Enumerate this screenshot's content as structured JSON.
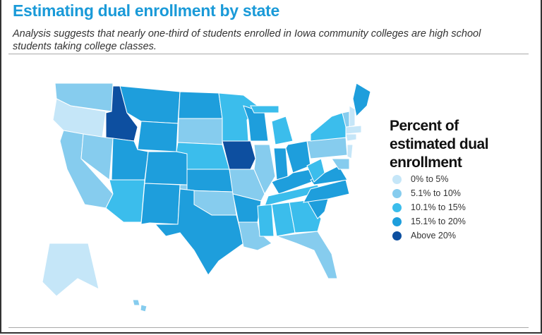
{
  "header": {
    "title": "Estimating dual enrollment by state",
    "subtitle": "Analysis suggests that nearly one-third of students enrolled in Iowa community colleges are high school students taking college classes."
  },
  "legend": {
    "title": "Percent of estimated dual enrollment",
    "items": [
      {
        "label": "0% to 5%",
        "color": "#c5e6f8"
      },
      {
        "label": "5.1% to 10%",
        "color": "#86ccee"
      },
      {
        "label": "10.1% to 15%",
        "color": "#3bbdec"
      },
      {
        "label": "15.1% to 20%",
        "color": "#1e9edc"
      },
      {
        "label": "Above 20%",
        "color": "#0d4fa0"
      }
    ]
  },
  "states": {
    "WA": 1,
    "OR": 0,
    "ID": 4,
    "MT": 3,
    "WY": 3,
    "CA": 1,
    "NV": 1,
    "UT": 3,
    "AZ": 2,
    "CO": 3,
    "NM": 3,
    "ND": 3,
    "SD": 1,
    "NE": 2,
    "KS": 3,
    "OK": 1,
    "TX": 3,
    "MN": 2,
    "IA": 4,
    "MO": 1,
    "AR": 3,
    "LA": 1,
    "WI": 3,
    "IL": 1,
    "MI": 2,
    "IN": 3,
    "OH": 3,
    "KY": 3,
    "TN": 2,
    "MS": 2,
    "AL": 2,
    "GA": 2,
    "FL": 1,
    "SC": 3,
    "NC": 3,
    "VA": 3,
    "WV": 2,
    "PA": 1,
    "NY": 2,
    "ME": 3,
    "VT": 1,
    "NH": 0,
    "MA": 0,
    "CT": 0,
    "NJ": 0,
    "MD": 1,
    "AK": 0,
    "HI": 1
  }
}
